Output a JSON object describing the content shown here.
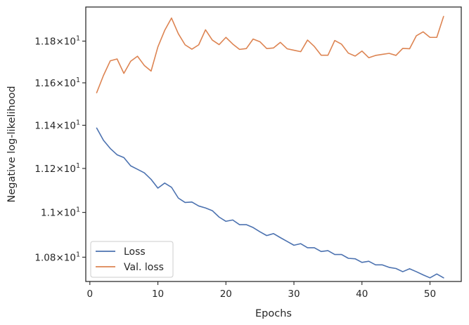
{
  "chart_data": {
    "type": "line",
    "xlabel": "Epochs",
    "ylabel": "Negative log-likelihood",
    "xlim": [
      -0.6,
      54.6
    ],
    "ylim": [
      10.693,
      11.966
    ],
    "y_scale": "log",
    "grid": false,
    "legend_position": "lower-left",
    "x_ticks": [
      0,
      10,
      20,
      30,
      40,
      50
    ],
    "y_ticks": [
      {
        "value": 10.8,
        "mantissa": "1.08",
        "base": "10",
        "exponent": "1"
      },
      {
        "value": 11.0,
        "mantissa": "1.1",
        "base": "10",
        "exponent": "1"
      },
      {
        "value": 11.2,
        "mantissa": "1.12",
        "base": "10",
        "exponent": "1"
      },
      {
        "value": 11.4,
        "mantissa": "1.14",
        "base": "10",
        "exponent": "1"
      },
      {
        "value": 11.6,
        "mantissa": "1.16",
        "base": "10",
        "exponent": "1"
      },
      {
        "value": 11.8,
        "mantissa": "1.18",
        "base": "10",
        "exponent": "1"
      }
    ],
    "x": [
      1,
      2,
      3,
      4,
      5,
      6,
      7,
      8,
      9,
      10,
      11,
      12,
      13,
      14,
      15,
      16,
      17,
      18,
      19,
      20,
      21,
      22,
      23,
      24,
      25,
      26,
      27,
      28,
      29,
      30,
      31,
      32,
      33,
      34,
      35,
      36,
      37,
      38,
      39,
      40,
      41,
      42,
      43,
      44,
      45,
      46,
      47,
      48,
      49,
      50,
      51,
      52
    ],
    "series": [
      {
        "name": "Loss",
        "color": "#4c72b0",
        "values": [
          11.387,
          11.33,
          11.292,
          11.263,
          11.25,
          11.212,
          11.196,
          11.18,
          11.15,
          11.11,
          11.133,
          11.114,
          11.065,
          11.045,
          11.047,
          11.029,
          11.02,
          11.008,
          10.979,
          10.96,
          10.966,
          10.945,
          10.945,
          10.932,
          10.913,
          10.896,
          10.905,
          10.887,
          10.87,
          10.853,
          10.86,
          10.842,
          10.842,
          10.825,
          10.829,
          10.812,
          10.812,
          10.795,
          10.793,
          10.777,
          10.782,
          10.766,
          10.766,
          10.755,
          10.75,
          10.736,
          10.749,
          10.736,
          10.722,
          10.709,
          10.726,
          10.709
        ]
      },
      {
        "name": "Val. loss",
        "color": "#dd8452",
        "values": [
          11.553,
          11.635,
          11.705,
          11.714,
          11.645,
          11.703,
          11.727,
          11.683,
          11.656,
          11.772,
          11.852,
          11.912,
          11.836,
          11.782,
          11.761,
          11.782,
          11.855,
          11.805,
          11.783,
          11.818,
          11.786,
          11.76,
          11.764,
          11.81,
          11.797,
          11.764,
          11.767,
          11.794,
          11.763,
          11.756,
          11.749,
          11.805,
          11.774,
          11.732,
          11.732,
          11.803,
          11.785,
          11.742,
          11.728,
          11.752,
          11.72,
          11.731,
          11.736,
          11.741,
          11.731,
          11.765,
          11.763,
          11.826,
          11.845,
          11.818,
          11.818,
          11.92
        ]
      }
    ]
  }
}
